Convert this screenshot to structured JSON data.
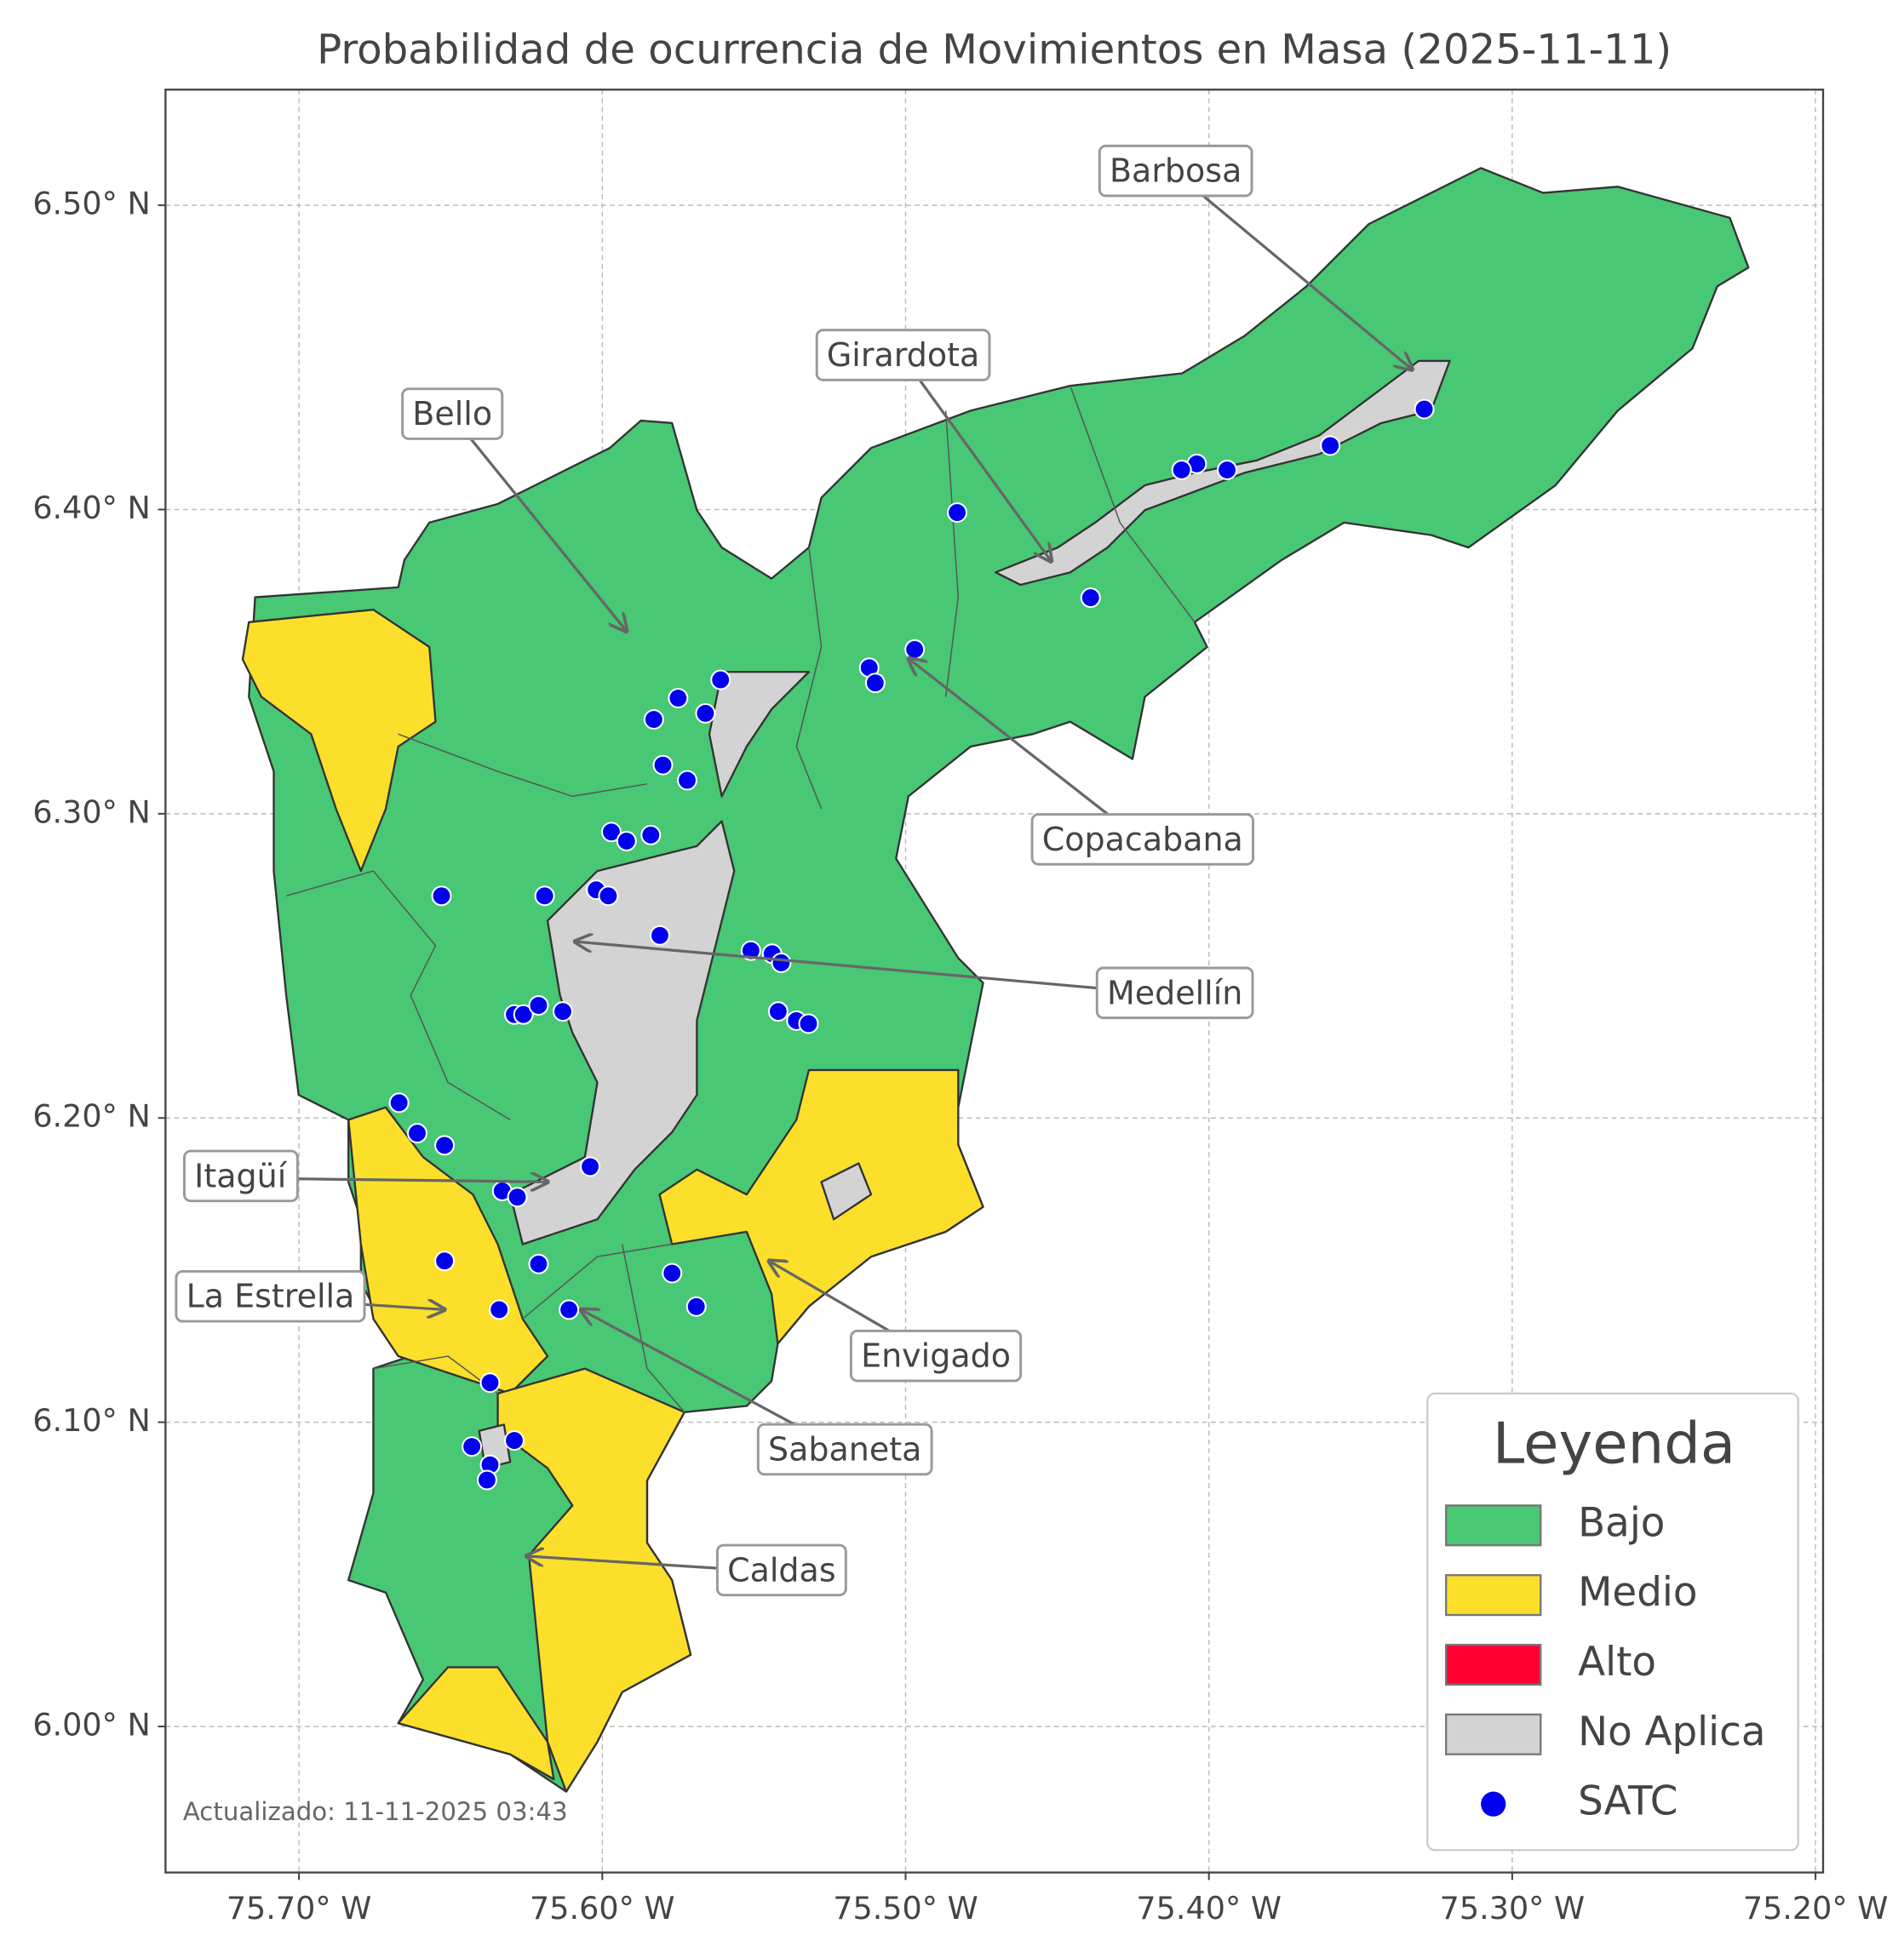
{
  "map": {
    "title": "Probabilidad de ocurrencia de Movimientos en Masa (2025-11-11)",
    "xlim": [
      -75.744,
      -75.1975
    ],
    "ylim": [
      5.952,
      6.538
    ],
    "xticks": [
      {
        "value": -75.7,
        "label": "75.70° W"
      },
      {
        "value": -75.6,
        "label": "75.60° W"
      },
      {
        "value": -75.5,
        "label": "75.50° W"
      },
      {
        "value": -75.4,
        "label": "75.40° W"
      },
      {
        "value": -75.3,
        "label": "75.30° W"
      },
      {
        "value": -75.2,
        "label": "75.20° W"
      }
    ],
    "yticks": [
      {
        "value": 6.0,
        "label": "6.00° N"
      },
      {
        "value": 6.1,
        "label": "6.10° N"
      },
      {
        "value": 6.2,
        "label": "6.20° N"
      },
      {
        "value": 6.3,
        "label": "6.30° N"
      },
      {
        "value": 6.4,
        "label": "6.40° N"
      },
      {
        "value": 6.5,
        "label": "6.50° N"
      }
    ],
    "grid": true,
    "legend": {
      "title": "Leyenda",
      "items": [
        {
          "label": "Bajo",
          "color": "#48c774"
        },
        {
          "label": "Medio",
          "color": "#fbdf2b"
        },
        {
          "label": "Alto",
          "color": "#ff0033"
        },
        {
          "label": "No Aplica",
          "color": "#d3d3d3"
        },
        {
          "label": "SATC",
          "color": "#0000ee",
          "marker": "circle"
        }
      ]
    },
    "stations": {
      "lon": [
        -75.329,
        -75.36,
        -75.394,
        -75.404,
        -75.409,
        -75.483,
        -75.439,
        -75.497,
        -75.512,
        -75.51,
        -75.561,
        -75.575,
        -75.566,
        -75.583,
        -75.58,
        -75.572,
        -75.597,
        -75.592,
        -75.584,
        -75.653,
        -75.619,
        -75.602,
        -75.598,
        -75.581,
        -75.551,
        -75.544,
        -75.541,
        -75.542,
        -75.536,
        -75.532,
        -75.629,
        -75.626,
        -75.621,
        -75.613,
        -75.667,
        -75.661,
        -75.652,
        -75.604,
        -75.633,
        -75.628,
        -75.621,
        -75.652,
        -75.577,
        -75.569,
        -75.611,
        -75.634,
        -75.637,
        -75.643,
        -75.629,
        -75.637,
        -75.638
      ],
      "lat": [
        6.433,
        6.421,
        6.413,
        6.415,
        6.413,
        6.399,
        6.371,
        6.354,
        6.348,
        6.343,
        6.344,
        6.338,
        6.333,
        6.331,
        6.316,
        6.311,
        6.294,
        6.291,
        6.293,
        6.273,
        6.273,
        6.275,
        6.273,
        6.26,
        6.255,
        6.254,
        6.251,
        6.235,
        6.232,
        6.231,
        6.234,
        6.234,
        6.237,
        6.235,
        6.205,
        6.195,
        6.191,
        6.184,
        6.176,
        6.174,
        6.152,
        6.153,
        6.149,
        6.138,
        6.137,
        6.137,
        6.113,
        6.092,
        6.094,
        6.086,
        6.081
      ]
    },
    "annotations": [
      {
        "text": "Barbosa",
        "lon": -75.333,
        "lat": 6.446
      },
      {
        "text": "Girardota",
        "lon": -75.452,
        "lat": 6.383
      },
      {
        "text": "Bello",
        "lon": -75.592,
        "lat": 6.36
      },
      {
        "text": "Copacabana",
        "lon": -75.499,
        "lat": 6.351
      },
      {
        "text": "Medellín",
        "lon": -75.609,
        "lat": 6.258
      },
      {
        "text": "Itagüí",
        "lon": -75.618,
        "lat": 6.179
      },
      {
        "text": "La Estrella",
        "lon": -75.652,
        "lat": 6.137
      },
      {
        "text": "Envigado",
        "lon": -75.545,
        "lat": 6.153
      },
      {
        "text": "Sabaneta",
        "lon": -75.607,
        "lat": 6.137
      },
      {
        "text": "Caldas",
        "lon": -75.625,
        "lat": 6.056
      }
    ],
    "footnote": "Actualizado: 11-11-2025 03:43"
  }
}
